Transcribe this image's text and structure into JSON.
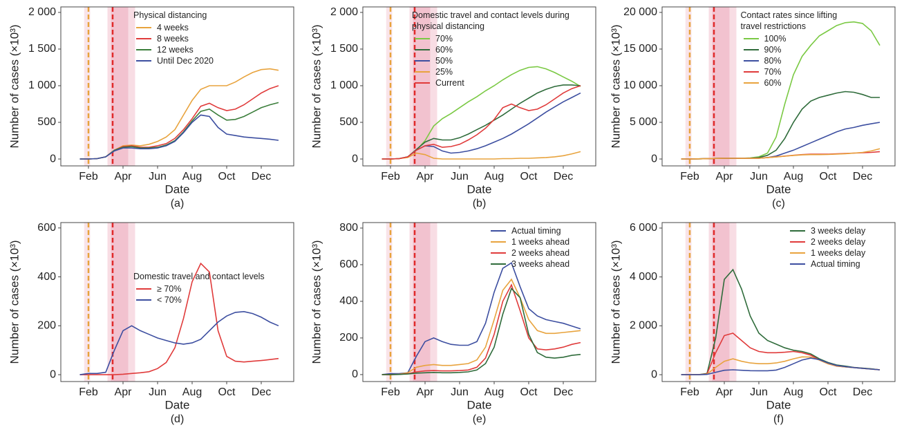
{
  "chart_data": [
    {
      "type": "line",
      "subtitle": "(a)",
      "x_label": "Date",
      "y_label": "Number of cases (×10³)",
      "legend_title": "Physical distancing",
      "legend": "upper left",
      "categories": [
        null,
        "Feb",
        null,
        null,
        null,
        "Apr",
        null,
        null,
        null,
        "Jun",
        null,
        null,
        null,
        "Aug",
        null,
        null,
        null,
        "Oct",
        null,
        null,
        null,
        "Dec",
        null,
        null
      ],
      "ylim": [
        -94,
        2075
      ],
      "yticks": [
        0,
        500,
        {
          "value": 1000,
          "label": "1 000"
        },
        {
          "value": 1500,
          "label": "1 500"
        },
        {
          "value": 2000,
          "label": "2 000"
        }
      ],
      "series": [
        {
          "name": "4 weeks",
          "color": "#e8a33d",
          "values": [
            0,
            0,
            5,
            30,
            120,
            180,
            190,
            180,
            200,
            240,
            300,
            400,
            600,
            800,
            950,
            1000,
            1000,
            1000,
            1050,
            1120,
            1180,
            1220,
            1230,
            1210
          ]
        },
        {
          "name": "8 weeks",
          "color": "#e03a3a",
          "values": [
            0,
            0,
            5,
            30,
            120,
            170,
            180,
            160,
            160,
            180,
            210,
            280,
            400,
            550,
            720,
            760,
            700,
            660,
            680,
            740,
            820,
            900,
            960,
            1000
          ]
        },
        {
          "name": "12 weeks",
          "color": "#3a7d3a",
          "values": [
            0,
            0,
            5,
            30,
            120,
            160,
            170,
            150,
            150,
            160,
            190,
            250,
            370,
            520,
            650,
            680,
            600,
            530,
            540,
            580,
            640,
            700,
            740,
            770
          ]
        },
        {
          "name": "Until Dec 2020",
          "color": "#3c4ea0",
          "values": [
            0,
            0,
            5,
            30,
            110,
            150,
            150,
            140,
            140,
            150,
            180,
            240,
            360,
            500,
            600,
            580,
            430,
            340,
            320,
            300,
            290,
            280,
            270,
            255
          ]
        }
      ]
    },
    {
      "type": "line",
      "subtitle": "(b)",
      "x_label": "Date",
      "y_label": "Number of cases (×10³)",
      "legend_title": "Domestic travel and contact levels during physical distancing",
      "legend": "upper center",
      "categories": [
        null,
        "Feb",
        null,
        null,
        null,
        "Apr",
        null,
        null,
        null,
        "Jun",
        null,
        null,
        null,
        "Aug",
        null,
        null,
        null,
        "Oct",
        null,
        null,
        null,
        "Dec",
        null,
        null
      ],
      "ylim": [
        -94,
        2075
      ],
      "yticks": [
        0,
        500,
        {
          "value": 1000,
          "label": "1 000"
        },
        {
          "value": 1500,
          "label": "1 500"
        },
        {
          "value": 2000,
          "label": "2 000"
        }
      ],
      "series": [
        {
          "name": "70%",
          "color": "#7ac943",
          "values": [
            0,
            0,
            5,
            30,
            120,
            250,
            450,
            550,
            620,
            700,
            780,
            850,
            930,
            1000,
            1080,
            1150,
            1210,
            1250,
            1260,
            1230,
            1180,
            1120,
            1060,
            990
          ]
        },
        {
          "name": "60%",
          "color": "#2e6b3a",
          "values": [
            0,
            0,
            5,
            30,
            130,
            230,
            280,
            260,
            260,
            290,
            340,
            400,
            460,
            530,
            600,
            680,
            760,
            830,
            900,
            950,
            990,
            1010,
            1010,
            1000
          ]
        },
        {
          "name": "50%",
          "color": "#3c4ea0",
          "values": [
            0,
            0,
            5,
            30,
            120,
            180,
            170,
            110,
            80,
            90,
            110,
            140,
            180,
            230,
            280,
            340,
            410,
            480,
            560,
            640,
            710,
            780,
            840,
            900
          ]
        },
        {
          "name": "25%",
          "color": "#e8a33d",
          "values": [
            0,
            0,
            5,
            20,
            80,
            60,
            10,
            0,
            0,
            0,
            0,
            0,
            0,
            0,
            5,
            5,
            10,
            10,
            15,
            20,
            30,
            45,
            70,
            100
          ]
        },
        {
          "name": "Current",
          "color": "#e03a3a",
          "values": [
            0,
            0,
            5,
            30,
            120,
            180,
            200,
            160,
            170,
            200,
            260,
            330,
            420,
            540,
            700,
            750,
            700,
            660,
            680,
            740,
            820,
            900,
            960,
            1000
          ]
        }
      ]
    },
    {
      "type": "line",
      "subtitle": "(c)",
      "x_label": "Date",
      "y_label": "Number of cases (×10³)",
      "legend_title": "Contact rates since lifting travel restrictions",
      "legend": "upper center",
      "categories": [
        null,
        "Feb",
        null,
        null,
        null,
        "Apr",
        null,
        null,
        null,
        "Jun",
        null,
        null,
        null,
        "Aug",
        null,
        null,
        null,
        "Oct",
        null,
        null,
        null,
        "Dec",
        null,
        null
      ],
      "ylim": [
        -940,
        20750
      ],
      "yticks": [
        0,
        {
          "value": 5000,
          "label": "5 000"
        },
        {
          "value": 10000,
          "label": "10 000"
        },
        {
          "value": 15000,
          "label": "15 000"
        },
        {
          "value": 20000,
          "label": "20 000"
        }
      ],
      "series": [
        {
          "name": "100%",
          "color": "#7ac943",
          "values": [
            0,
            0,
            20,
            40,
            80,
            100,
            100,
            100,
            150,
            300,
            800,
            3000,
            7500,
            11500,
            14000,
            15500,
            16800,
            17500,
            18200,
            18600,
            18700,
            18500,
            17500,
            15500
          ]
        },
        {
          "name": "90%",
          "color": "#2e6b3a",
          "values": [
            0,
            0,
            20,
            40,
            80,
            100,
            100,
            100,
            120,
            200,
            500,
            1200,
            2800,
            5000,
            6800,
            7900,
            8400,
            8700,
            9000,
            9200,
            9100,
            8800,
            8400,
            8400
          ]
        },
        {
          "name": "80%",
          "color": "#3c4ea0",
          "values": [
            0,
            0,
            20,
            40,
            80,
            100,
            100,
            90,
            90,
            100,
            200,
            400,
            800,
            1200,
            1700,
            2200,
            2700,
            3200,
            3700,
            4100,
            4300,
            4600,
            4800,
            5000
          ]
        },
        {
          "name": "70%",
          "color": "#e03a3a",
          "values": [
            0,
            0,
            20,
            40,
            80,
            100,
            100,
            90,
            90,
            100,
            200,
            300,
            400,
            500,
            600,
            650,
            650,
            650,
            700,
            750,
            800,
            850,
            900,
            1000
          ]
        },
        {
          "name": "60%",
          "color": "#e8a33d",
          "values": [
            0,
            0,
            20,
            40,
            80,
            100,
            100,
            90,
            90,
            100,
            180,
            280,
            380,
            480,
            560,
            600,
            600,
            620,
            660,
            720,
            800,
            900,
            1100,
            1400
          ]
        }
      ]
    },
    {
      "type": "line",
      "subtitle": "(d)",
      "x_label": "Date",
      "y_label": "Number of cases (×10³)",
      "legend_title": "Domestic travel and contact levels",
      "legend": "center left",
      "categories": [
        null,
        "Feb",
        null,
        null,
        null,
        "Apr",
        null,
        null,
        null,
        "Jun",
        null,
        null,
        null,
        "Aug",
        null,
        null,
        null,
        "Oct",
        null,
        null,
        null,
        "Dec",
        null,
        null
      ],
      "ylim": [
        -28,
        622
      ],
      "yticks": [
        0,
        200,
        400,
        600
      ],
      "series": [
        {
          "name": "≥ 70%",
          "color": "#e03a3a",
          "values": [
            0,
            0,
            0,
            0,
            0,
            2,
            5,
            8,
            12,
            25,
            50,
            110,
            230,
            380,
            455,
            420,
            180,
            75,
            55,
            52,
            55,
            58,
            62,
            66
          ]
        },
        {
          "name": "< 70%",
          "color": "#3c4ea0",
          "values": [
            0,
            5,
            5,
            10,
            100,
            180,
            200,
            180,
            165,
            150,
            140,
            130,
            125,
            130,
            145,
            180,
            215,
            240,
            255,
            258,
            250,
            235,
            215,
            200
          ]
        }
      ]
    },
    {
      "type": "line",
      "subtitle": "(e)",
      "x_label": "Date",
      "y_label": "Number of cases (×10³)",
      "legend": "upper right",
      "categories": [
        null,
        "Feb",
        null,
        null,
        null,
        "Apr",
        null,
        null,
        null,
        "Jun",
        null,
        null,
        null,
        "Aug",
        null,
        null,
        null,
        "Oct",
        null,
        null,
        null,
        "Dec",
        null,
        null
      ],
      "ylim": [
        -38,
        830
      ],
      "yticks": [
        0,
        200,
        400,
        600,
        800
      ],
      "series": [
        {
          "name": "Actual timing",
          "color": "#3c4ea0",
          "values": [
            0,
            5,
            5,
            10,
            100,
            180,
            200,
            180,
            165,
            160,
            160,
            180,
            280,
            450,
            580,
            610,
            480,
            360,
            320,
            300,
            290,
            280,
            265,
            250
          ]
        },
        {
          "name": "1 weeks ahead",
          "color": "#e8a33d",
          "values": [
            0,
            0,
            2,
            10,
            40,
            50,
            55,
            50,
            50,
            55,
            60,
            80,
            150,
            300,
            460,
            520,
            420,
            300,
            240,
            225,
            225,
            230,
            235,
            240
          ]
        },
        {
          "name": "2 weeks ahead",
          "color": "#e03a3a",
          "values": [
            0,
            0,
            1,
            5,
            15,
            20,
            22,
            20,
            20,
            22,
            25,
            40,
            90,
            220,
            400,
            490,
            350,
            200,
            140,
            135,
            140,
            150,
            165,
            175
          ]
        },
        {
          "name": "3 weeks ahead",
          "color": "#2e6b3a",
          "values": [
            0,
            0,
            1,
            3,
            8,
            10,
            12,
            10,
            10,
            12,
            15,
            25,
            60,
            150,
            330,
            470,
            420,
            220,
            120,
            95,
            90,
            95,
            105,
            110
          ]
        }
      ]
    },
    {
      "type": "line",
      "subtitle": "(f)",
      "x_label": "Date",
      "y_label": "Number of cases (×10³)",
      "legend": "upper right",
      "categories": [
        null,
        "Feb",
        null,
        null,
        null,
        "Apr",
        null,
        null,
        null,
        "Jun",
        null,
        null,
        null,
        "Aug",
        null,
        null,
        null,
        "Oct",
        null,
        null,
        null,
        "Dec",
        null,
        null
      ],
      "ylim": [
        -280,
        6225
      ],
      "yticks": [
        0,
        {
          "value": 2000,
          "label": "2 000"
        },
        {
          "value": 4000,
          "label": "4 000"
        },
        {
          "value": 6000,
          "label": "6 000"
        }
      ],
      "series": [
        {
          "name": "3 weeks delay",
          "color": "#2e6b3a",
          "values": [
            0,
            0,
            0,
            50,
            1500,
            3900,
            4300,
            3500,
            2400,
            1700,
            1400,
            1250,
            1100,
            1000,
            950,
            850,
            650,
            500,
            400,
            350,
            300,
            270,
            240,
            200
          ]
        },
        {
          "name": "2 weeks delay",
          "color": "#e03a3a",
          "values": [
            0,
            0,
            0,
            30,
            900,
            1600,
            1700,
            1400,
            1100,
            950,
            900,
            900,
            920,
            950,
            900,
            800,
            600,
            450,
            350,
            320,
            290,
            260,
            230,
            200
          ]
        },
        {
          "name": "1 weeks delay",
          "color": "#e8a33d",
          "values": [
            0,
            0,
            0,
            20,
            300,
            550,
            650,
            550,
            480,
            450,
            450,
            480,
            550,
            650,
            730,
            720,
            600,
            450,
            360,
            320,
            290,
            260,
            230,
            200
          ]
        },
        {
          "name": "Actual timing",
          "color": "#3c4ea0",
          "values": [
            0,
            0,
            0,
            10,
            100,
            180,
            200,
            180,
            165,
            160,
            160,
            190,
            300,
            450,
            600,
            680,
            620,
            480,
            380,
            330,
            290,
            260,
            230,
            200
          ]
        }
      ]
    }
  ]
}
